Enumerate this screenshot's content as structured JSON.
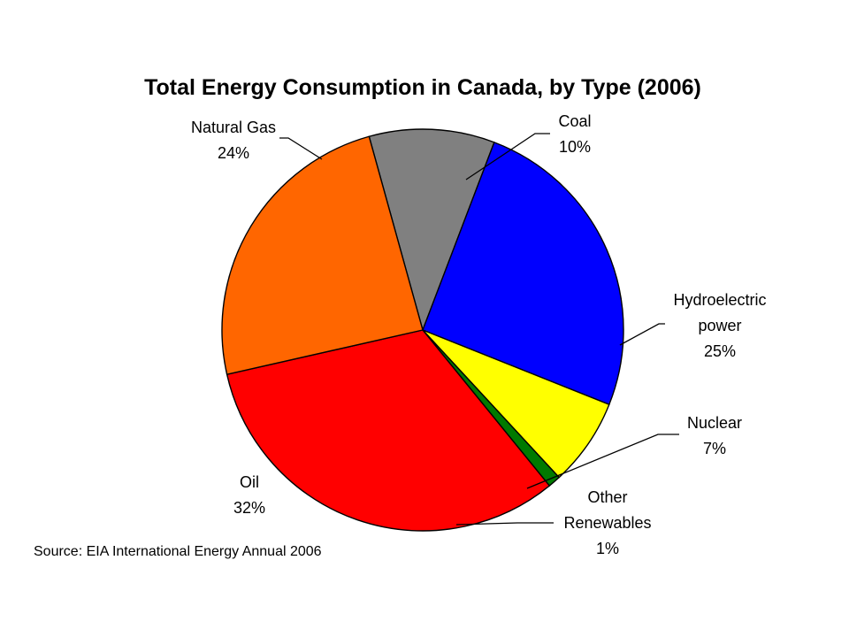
{
  "chart_data": {
    "type": "pie",
    "title": "Total Energy Consumption in Canada, by Type (2006)",
    "source": "Source: EIA International Energy Annual 2006",
    "unit": "%",
    "slices": [
      {
        "label": "Coal",
        "value": 10,
        "color": "#808080",
        "label_lines": [
          "Coal",
          "10%"
        ]
      },
      {
        "label": "Hydroelectric power",
        "value": 25,
        "color": "#0000ff",
        "label_lines": [
          "Hydroelectric",
          "power",
          "25%"
        ]
      },
      {
        "label": "Nuclear",
        "value": 7,
        "color": "#ffff00",
        "label_lines": [
          "Nuclear",
          "7%"
        ]
      },
      {
        "label": "Other Renewables",
        "value": 1,
        "color": "#007a00",
        "label_lines": [
          "Other",
          "Renewables",
          "1%"
        ]
      },
      {
        "label": "Oil",
        "value": 32,
        "color": "#ff0000",
        "label_lines": [
          "Oil",
          "32%"
        ]
      },
      {
        "label": "Natural Gas",
        "value": 24,
        "color": "#ff6600",
        "label_lines": [
          "Natural Gas",
          "24%"
        ]
      }
    ],
    "legend": "none"
  }
}
